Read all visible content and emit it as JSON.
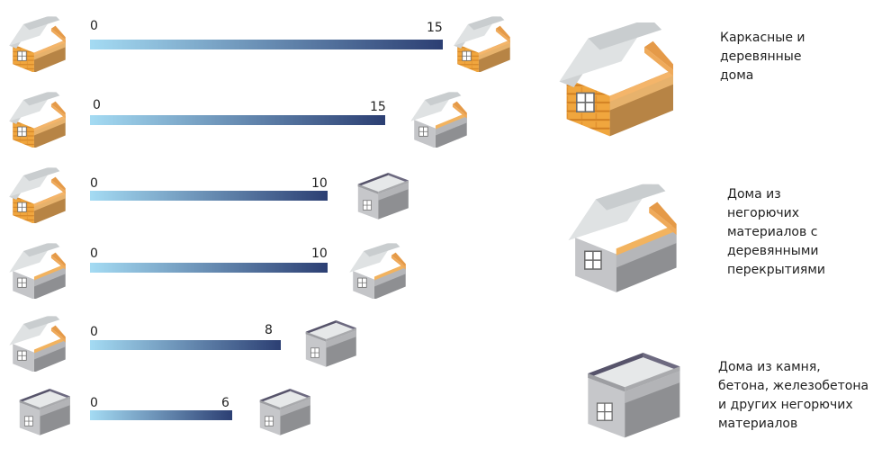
{
  "colors": {
    "bar_start": "#a4dbf3",
    "bar_end": "#2c3f73"
  },
  "rows": [
    {
      "left_icon": "wooden-house-icon",
      "right_icon": "wooden-house-icon",
      "start": "0",
      "end": "15"
    },
    {
      "left_icon": "wooden-house-icon",
      "right_icon": "mixed-house-icon",
      "start": "0",
      "end": "15"
    },
    {
      "left_icon": "wooden-house-icon",
      "right_icon": "stone-house-icon",
      "start": "0",
      "end": "10"
    },
    {
      "left_icon": "mixed-house-icon",
      "right_icon": "mixed-house-icon",
      "start": "0",
      "end": "10"
    },
    {
      "left_icon": "mixed-house-icon",
      "right_icon": "stone-house-icon",
      "start": "0",
      "end": "8"
    },
    {
      "left_icon": "stone-house-icon",
      "right_icon": "stone-house-icon",
      "start": "0",
      "end": "6"
    }
  ],
  "legend": [
    {
      "icon": "wooden-house-icon",
      "label": "Каркасные и\nдеревянные\nдома"
    },
    {
      "icon": "mixed-house-icon",
      "label": "Дома из\nнегорючих\nматериалов с\nдеревянными\nперекрытиями"
    },
    {
      "icon": "stone-house-icon",
      "label": "Дома из камня,\nбетона, железобетона\nи других негорючих\nматериалов"
    }
  ]
}
